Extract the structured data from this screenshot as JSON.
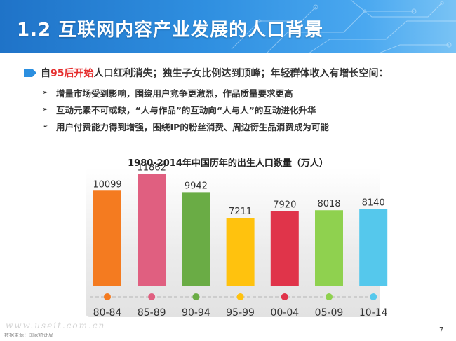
{
  "header": {
    "title": "1.2 互联网内容产业发展的人口背景"
  },
  "main_point": {
    "prefix": "自",
    "highlight": "95后开始",
    "suffix": "人口红利消失；独生子女比例达到顶峰；年轻群体收入有增长空间："
  },
  "sub_points": [
    "增量市场受到影响，围绕用户竞争更激烈，作品质量要求更高",
    "互动元素不可或缺，“人与作品”的互动向“人与人”的互动进化升华",
    "用户付费能力得到增强，围绕IP的粉丝消费、周边衍生品消费成为可能"
  ],
  "chart_data": {
    "type": "bar",
    "title": "1980-2014年中国历年的出生人口数量（万人）",
    "categories": [
      "80-84",
      "85-89",
      "90-94",
      "95-99",
      "00-04",
      "05-09",
      "10-14"
    ],
    "values": [
      10099,
      11862,
      9942,
      7211,
      7920,
      8018,
      8140
    ],
    "colors": [
      "#f47b20",
      "#e05f80",
      "#6aac45",
      "#ffc20e",
      "#e0344a",
      "#8fd14f",
      "#55c8ec"
    ],
    "ylim": [
      0,
      12500
    ]
  },
  "footer": {
    "site": "www.useit.com.cn",
    "source": "数据来源：国家统计局",
    "page": "7"
  }
}
